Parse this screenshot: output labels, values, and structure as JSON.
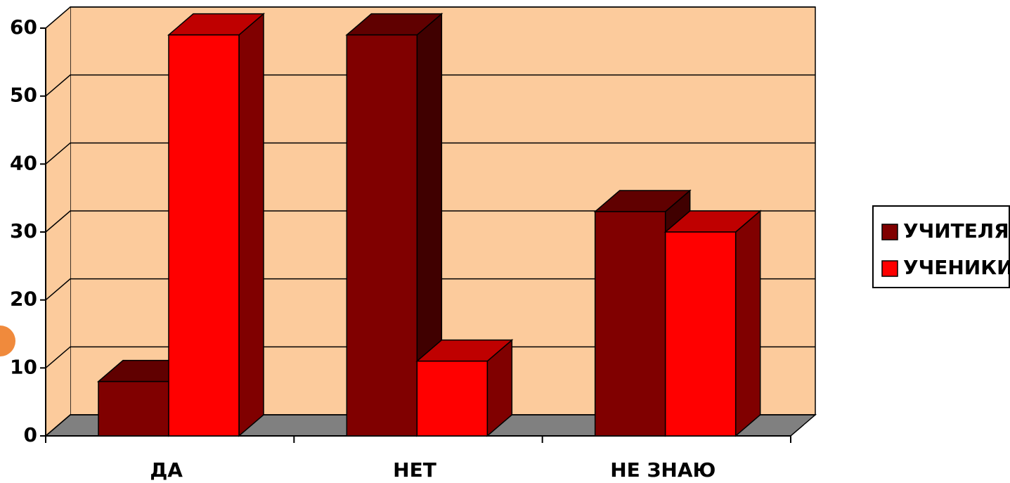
{
  "chart_data": {
    "type": "bar3d",
    "categories": [
      "ДА",
      "НЕТ",
      "НЕ ЗНАЮ"
    ],
    "series": [
      {
        "name": "УЧИТЕЛЯ",
        "color": "#800000",
        "values": [
          8,
          59,
          33
        ]
      },
      {
        "name": "УЧЕНИКИ",
        "color": "#ff0000",
        "values": [
          59,
          11,
          30
        ]
      }
    ],
    "ylim": [
      0,
      60
    ],
    "yticks": [
      0,
      10,
      20,
      30,
      40,
      50,
      60
    ],
    "grid": true,
    "legend": "right"
  }
}
